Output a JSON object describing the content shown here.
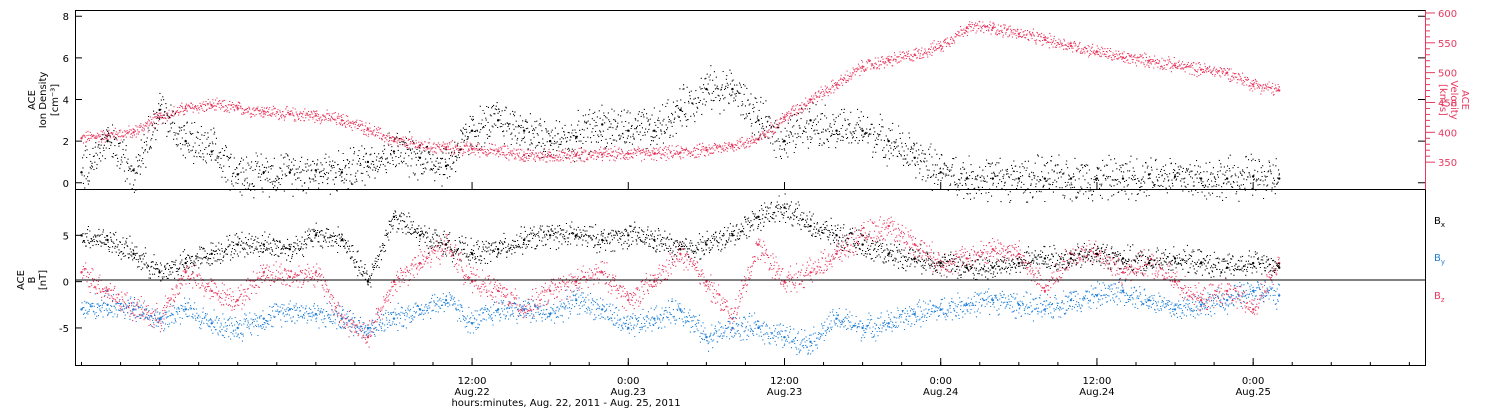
{
  "colors": {
    "black": "#000000",
    "pink": "#e8385e",
    "blue": "#1e7fd6",
    "frame": "#000000"
  },
  "x_axis": {
    "title": "hours:minutes, Aug. 22, 2011 - Aug. 25, 2011",
    "range_hours": [
      -18.5,
      85.2
    ],
    "ticks": [
      {
        "t": 12,
        "time": "12:00",
        "date": "Aug.22"
      },
      {
        "t": 24,
        "time": "0:00",
        "date": "Aug.23"
      },
      {
        "t": 36,
        "time": "12:00",
        "date": "Aug.23"
      },
      {
        "t": 48,
        "time": "0:00",
        "date": "Aug.24"
      },
      {
        "t": 60,
        "time": "12:00",
        "date": "Aug.24"
      },
      {
        "t": 72,
        "time": "0:00",
        "date": "Aug.25"
      }
    ]
  },
  "top_panel": {
    "left_label": [
      "ACE",
      "Ion Density",
      "[cm⁻³]"
    ],
    "right_label": [
      "ACE",
      "Velocity",
      "[km/s]"
    ],
    "left_ticks": [
      "0",
      "2",
      "4",
      "6",
      "8"
    ],
    "right_ticks": [
      "350",
      "400",
      "450",
      "500",
      "550",
      "600"
    ]
  },
  "bottom_panel": {
    "left_label": [
      "ACE",
      "B",
      "[nT]"
    ],
    "left_ticks": [
      "-5",
      "0",
      "5"
    ],
    "legend": [
      {
        "base": "B",
        "sub": "x",
        "color": "#000000"
      },
      {
        "base": "B",
        "sub": "y",
        "color": "#1e7fd6"
      },
      {
        "base": "B",
        "sub": "z",
        "color": "#e8385e"
      }
    ]
  },
  "chart_data": [
    {
      "type": "scatter",
      "panel": "top",
      "x_unit": "hours from 2011-08-22 00:00 UT",
      "ylim_left": [
        -0.3,
        8.3
      ],
      "ylim_right": [
        305,
        605
      ],
      "series": [
        {
          "axis": "left",
          "color": "#000000",
          "x": [
            -18,
            -16,
            -14,
            -12,
            -10,
            -8,
            -6,
            -4,
            -2,
            0,
            2,
            4,
            6,
            8,
            10,
            12,
            14,
            16,
            18,
            20,
            22,
            24,
            26,
            28,
            30,
            32,
            34,
            36,
            38,
            40,
            42,
            44,
            46,
            48,
            50,
            52,
            54,
            56,
            58,
            60,
            62,
            64,
            66,
            68,
            70,
            72,
            74
          ],
          "values": [
            0.5,
            2.0,
            0.6,
            3.5,
            2.0,
            1.5,
            0.4,
            0.5,
            0.5,
            0.6,
            0.5,
            1.0,
            1.5,
            1.2,
            0.8,
            2.5,
            3.0,
            2.5,
            2.0,
            2.2,
            2.8,
            2.5,
            2.5,
            3.5,
            4.5,
            4.5,
            3.0,
            2.0,
            3.0,
            2.5,
            2.5,
            2.0,
            1.2,
            0.5,
            0.2,
            0.2,
            0.2,
            0.2,
            0.2,
            0.2,
            0.2,
            0.4,
            0.3,
            0.2,
            0.2,
            0.3,
            0.2
          ]
        },
        {
          "axis": "right",
          "color": "#e8385e",
          "x": [
            -18,
            -16,
            -14,
            -12,
            -10,
            -8,
            -6,
            -4,
            -2,
            0,
            2,
            4,
            6,
            8,
            10,
            12,
            14,
            16,
            18,
            20,
            22,
            24,
            26,
            28,
            30,
            32,
            34,
            36,
            38,
            40,
            42,
            44,
            46,
            48,
            50,
            52,
            54,
            56,
            58,
            60,
            62,
            64,
            66,
            68,
            70,
            72,
            74
          ],
          "values": [
            390,
            395,
            400,
            425,
            440,
            445,
            440,
            435,
            430,
            428,
            420,
            405,
            385,
            378,
            374,
            372,
            368,
            362,
            360,
            362,
            363,
            364,
            364,
            366,
            370,
            378,
            388,
            425,
            455,
            480,
            510,
            520,
            530,
            545,
            575,
            575,
            565,
            555,
            545,
            535,
            525,
            520,
            512,
            505,
            500,
            480,
            470
          ]
        }
      ]
    },
    {
      "type": "scatter",
      "panel": "bottom",
      "x_unit": "hours from 2011-08-22 00:00 UT",
      "ylim": [
        -9,
        10
      ],
      "series": [
        {
          "color": "#000000",
          "x": [
            -18,
            -16,
            -14,
            -12,
            -10,
            -8,
            -6,
            -4,
            -2,
            0,
            2,
            4,
            6,
            8,
            10,
            12,
            14,
            16,
            18,
            20,
            22,
            24,
            26,
            28,
            30,
            32,
            34,
            36,
            38,
            40,
            42,
            44,
            46,
            48,
            50,
            52,
            54,
            56,
            58,
            60,
            62,
            64,
            66,
            68,
            70,
            72,
            74
          ],
          "values": [
            5,
            4.5,
            3,
            1,
            2,
            3,
            4,
            4,
            3.5,
            5,
            4.5,
            0,
            7,
            5,
            4,
            3,
            3.5,
            4.5,
            5,
            5,
            4.5,
            5,
            4.5,
            3.5,
            4,
            5,
            7,
            8,
            6,
            5,
            4,
            3,
            2.5,
            2,
            1.5,
            1.5,
            2,
            2.5,
            2.5,
            3,
            2.5,
            2,
            2.5,
            2,
            1.5,
            2,
            1.5
          ]
        },
        {
          "color": "#1e7fd6",
          "x": [
            -18,
            -16,
            -14,
            -12,
            -10,
            -8,
            -6,
            -4,
            -2,
            0,
            2,
            4,
            6,
            8,
            10,
            12,
            14,
            16,
            18,
            20,
            22,
            24,
            26,
            28,
            30,
            32,
            34,
            36,
            38,
            40,
            42,
            44,
            46,
            48,
            50,
            52,
            54,
            56,
            58,
            60,
            62,
            64,
            66,
            68,
            70,
            72,
            74
          ],
          "values": [
            -3,
            -2.5,
            -3,
            -4,
            -3,
            -4.5,
            -5,
            -4,
            -3,
            -3.5,
            -4,
            -5,
            -4,
            -3,
            -2,
            -4.5,
            -3,
            -3,
            -3.5,
            -2,
            -3,
            -5,
            -4,
            -3,
            -6,
            -5,
            -5,
            -6,
            -6.5,
            -4,
            -5,
            -4.5,
            -3.5,
            -3,
            -2.5,
            -2,
            -2.5,
            -3,
            -2,
            -1.5,
            -1,
            -2,
            -3,
            -2.5,
            -2,
            -1,
            -1.5
          ]
        },
        {
          "color": "#e8385e",
          "x": [
            -18,
            -16,
            -14,
            -12,
            -10,
            -8,
            -6,
            -4,
            -2,
            0,
            2,
            4,
            6,
            8,
            10,
            12,
            14,
            16,
            18,
            20,
            22,
            24,
            26,
            28,
            30,
            32,
            34,
            36,
            38,
            40,
            42,
            44,
            46,
            48,
            50,
            52,
            54,
            56,
            58,
            60,
            62,
            64,
            66,
            68,
            70,
            72,
            74
          ],
          "values": [
            1,
            -1,
            -3,
            -4,
            1,
            -1,
            -2,
            1,
            0.5,
            1,
            -4,
            -6,
            0,
            2,
            4,
            0,
            -1,
            -3,
            -1,
            0,
            1,
            -2,
            0,
            3,
            0,
            -4,
            4,
            0,
            1,
            3,
            5,
            6,
            4,
            2,
            2.5,
            3.5,
            3,
            -1,
            3,
            3,
            1,
            2,
            0,
            -2,
            -1,
            -3,
            2
          ]
        }
      ]
    }
  ]
}
